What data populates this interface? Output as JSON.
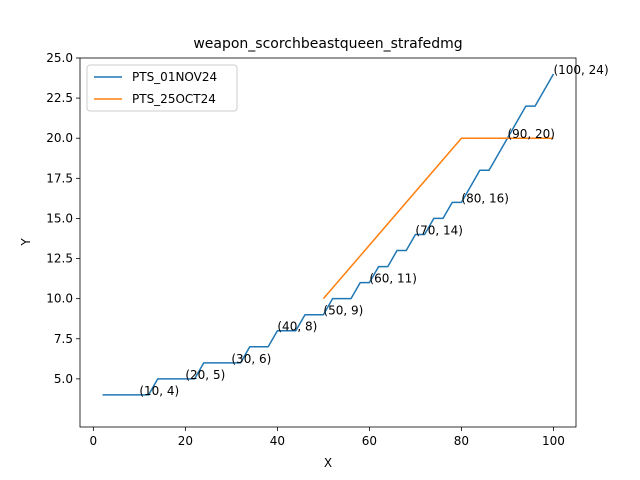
{
  "chart_data": {
    "type": "line",
    "title": "weapon_scorchbeastqueen_strafedmg",
    "xlabel": "X",
    "ylabel": "Y",
    "xlim": [
      -2.9,
      104.9
    ],
    "ylim": [
      2.0,
      25.0
    ],
    "xticks": [
      0,
      20,
      40,
      60,
      80,
      100
    ],
    "xtick_labels": [
      "0",
      "20",
      "40",
      "60",
      "80",
      "100"
    ],
    "yticks": [
      5.0,
      7.5,
      10.0,
      12.5,
      15.0,
      17.5,
      20.0,
      22.5,
      25.0
    ],
    "ytick_labels": [
      "5.0",
      "7.5",
      "10.0",
      "12.5",
      "15.0",
      "17.5",
      "20.0",
      "22.5",
      "25.0"
    ],
    "grid": false,
    "legend_position": "top-left",
    "series": [
      {
        "name": "PTS_01NOV24",
        "color": "#1f77b4",
        "x": [
          2,
          12,
          14,
          22,
          24,
          32,
          34,
          38,
          40,
          44,
          46,
          50,
          52,
          56,
          58,
          60,
          62,
          64,
          66,
          68,
          70,
          72,
          74,
          76,
          78,
          80,
          82,
          84,
          86,
          88,
          90,
          92,
          94,
          96,
          98,
          100
        ],
        "y": [
          4,
          4,
          5,
          5,
          6,
          6,
          7,
          7,
          8,
          8,
          9,
          9,
          10,
          10,
          11,
          11,
          12,
          12,
          13,
          13,
          14,
          14,
          15,
          15,
          16,
          16,
          17,
          18,
          18,
          19,
          20,
          21,
          22,
          22,
          23,
          24
        ]
      },
      {
        "name": "PTS_25OCT24",
        "color": "#ff7f0e",
        "x": [
          50,
          80,
          100
        ],
        "y": [
          10,
          20,
          20
        ]
      }
    ],
    "annotations": [
      {
        "x": 10,
        "y": 4,
        "text": "(10, 4)"
      },
      {
        "x": 20,
        "y": 5,
        "text": "(20, 5)"
      },
      {
        "x": 30,
        "y": 6,
        "text": "(30, 6)"
      },
      {
        "x": 40,
        "y": 8,
        "text": "(40, 8)"
      },
      {
        "x": 50,
        "y": 9,
        "text": "(50, 9)"
      },
      {
        "x": 60,
        "y": 11,
        "text": "(60, 11)"
      },
      {
        "x": 70,
        "y": 14,
        "text": "(70, 14)"
      },
      {
        "x": 80,
        "y": 16,
        "text": "(80, 16)"
      },
      {
        "x": 90,
        "y": 20,
        "text": "(90, 20)"
      },
      {
        "x": 100,
        "y": 24,
        "text": "(100, 24)"
      }
    ]
  }
}
